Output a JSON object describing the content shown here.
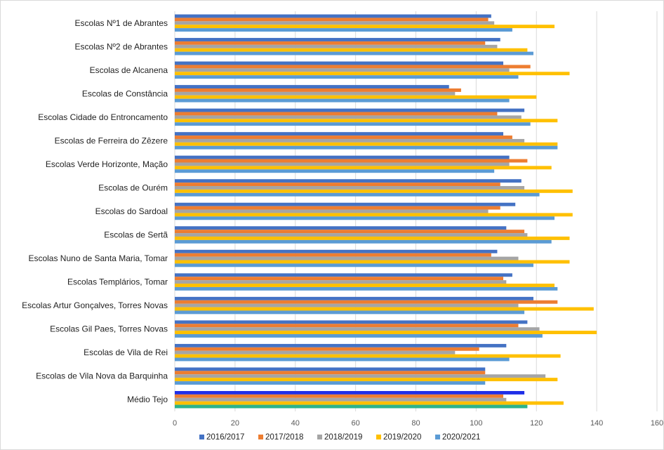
{
  "chart_data": {
    "type": "bar",
    "orientation": "horizontal",
    "title": "",
    "xlabel": "",
    "ylabel": "",
    "xlim": [
      0,
      160
    ],
    "xticks": [
      "0",
      "20",
      "40",
      "60",
      "80",
      "100",
      "120",
      "140",
      "160"
    ],
    "grid": true,
    "legend_position": "bottom",
    "categories": [
      "Escolas Nº1 de Abrantes",
      "Escolas Nº2 de Abrantes",
      "Escolas de Alcanena",
      "Escolas de Constância",
      "Escolas Cidade do Entroncamento",
      "Escolas de Ferreira do Zêzere",
      "Escolas Verde Horizonte, Mação",
      "Escolas de Ourém",
      "Escolas do Sardoal",
      "Escolas de Sertã",
      "Escolas Nuno de Santa Maria, Tomar",
      "Escolas Templários, Tomar",
      "Escolas Artur Gonçalves, Torres Novas",
      "Escolas Gil Paes, Torres Novas",
      "Escolas de Vila de Rei",
      "Escolas de Vila Nova da Barquinha",
      "Médio Tejo"
    ],
    "series": [
      {
        "name": "2016/2017",
        "color": "#4472C4",
        "values": [
          105,
          108,
          109,
          91,
          116,
          109,
          111,
          115,
          113,
          110,
          107,
          112,
          119,
          117,
          110,
          103,
          116
        ]
      },
      {
        "name": "2017/2018",
        "color": "#ED7D31",
        "values": [
          104,
          103,
          118,
          95,
          107,
          112,
          117,
          108,
          108,
          116,
          105,
          109,
          127,
          114,
          101,
          103,
          109
        ]
      },
      {
        "name": "2018/2019",
        "color": "#A5A5A5",
        "values": [
          106,
          107,
          111,
          93,
          115,
          116,
          111,
          116,
          104,
          117,
          114,
          110,
          114,
          121,
          93,
          123,
          110
        ]
      },
      {
        "name": "2019/2020",
        "color": "#FFC000",
        "values": [
          126,
          117,
          131,
          120,
          127,
          127,
          125,
          132,
          132,
          131,
          131,
          126,
          139,
          140,
          128,
          127,
          129
        ]
      },
      {
        "name": "2020/2021",
        "color": "#5B9BD5",
        "values": [
          112,
          119,
          114,
          111,
          118,
          127,
          106,
          121,
          126,
          125,
          119,
          127,
          116,
          122,
          111,
          103,
          117
        ]
      }
    ],
    "highlight_category": {
      "name": "Médio Tejo",
      "colors": [
        "#1F2EE8",
        "#ED7D31",
        "#A5A5A5",
        "#FFC000",
        "#2DB38A"
      ]
    }
  }
}
